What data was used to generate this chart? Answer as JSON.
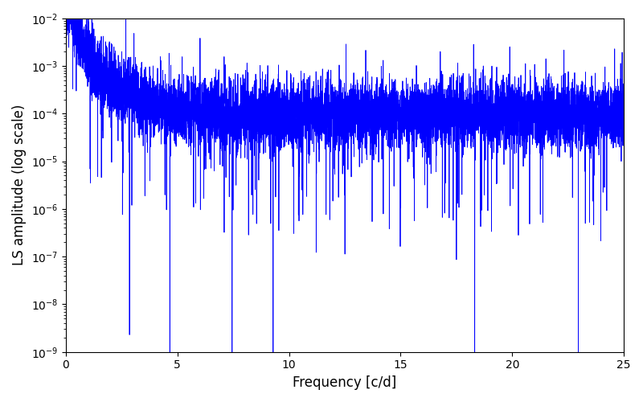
{
  "xlabel": "Frequency [c/d]",
  "ylabel": "LS amplitude (log scale)",
  "line_color": "#0000ff",
  "xlim": [
    0,
    25
  ],
  "ylim_log": [
    -9,
    -2
  ],
  "freq_min": 0.0,
  "freq_max": 25.0,
  "n_points": 8000,
  "seed": 137,
  "background_color": "#ffffff",
  "figsize": [
    8.0,
    5.0
  ],
  "dpi": 100,
  "base_log": -4.0,
  "noise_std": 0.35,
  "low_freq_boost_scale": 2.5,
  "low_freq_boost_decay": 1.5,
  "n_deep_dips": 6,
  "deep_dip_min": 4,
  "deep_dip_max": 7,
  "n_shallow_dips": 120,
  "shallow_dip_min": 1.0,
  "shallow_dip_max": 2.5,
  "n_peaks": 30,
  "peak_min": 0.5,
  "peak_max": 1.5,
  "linewidth": 0.6
}
